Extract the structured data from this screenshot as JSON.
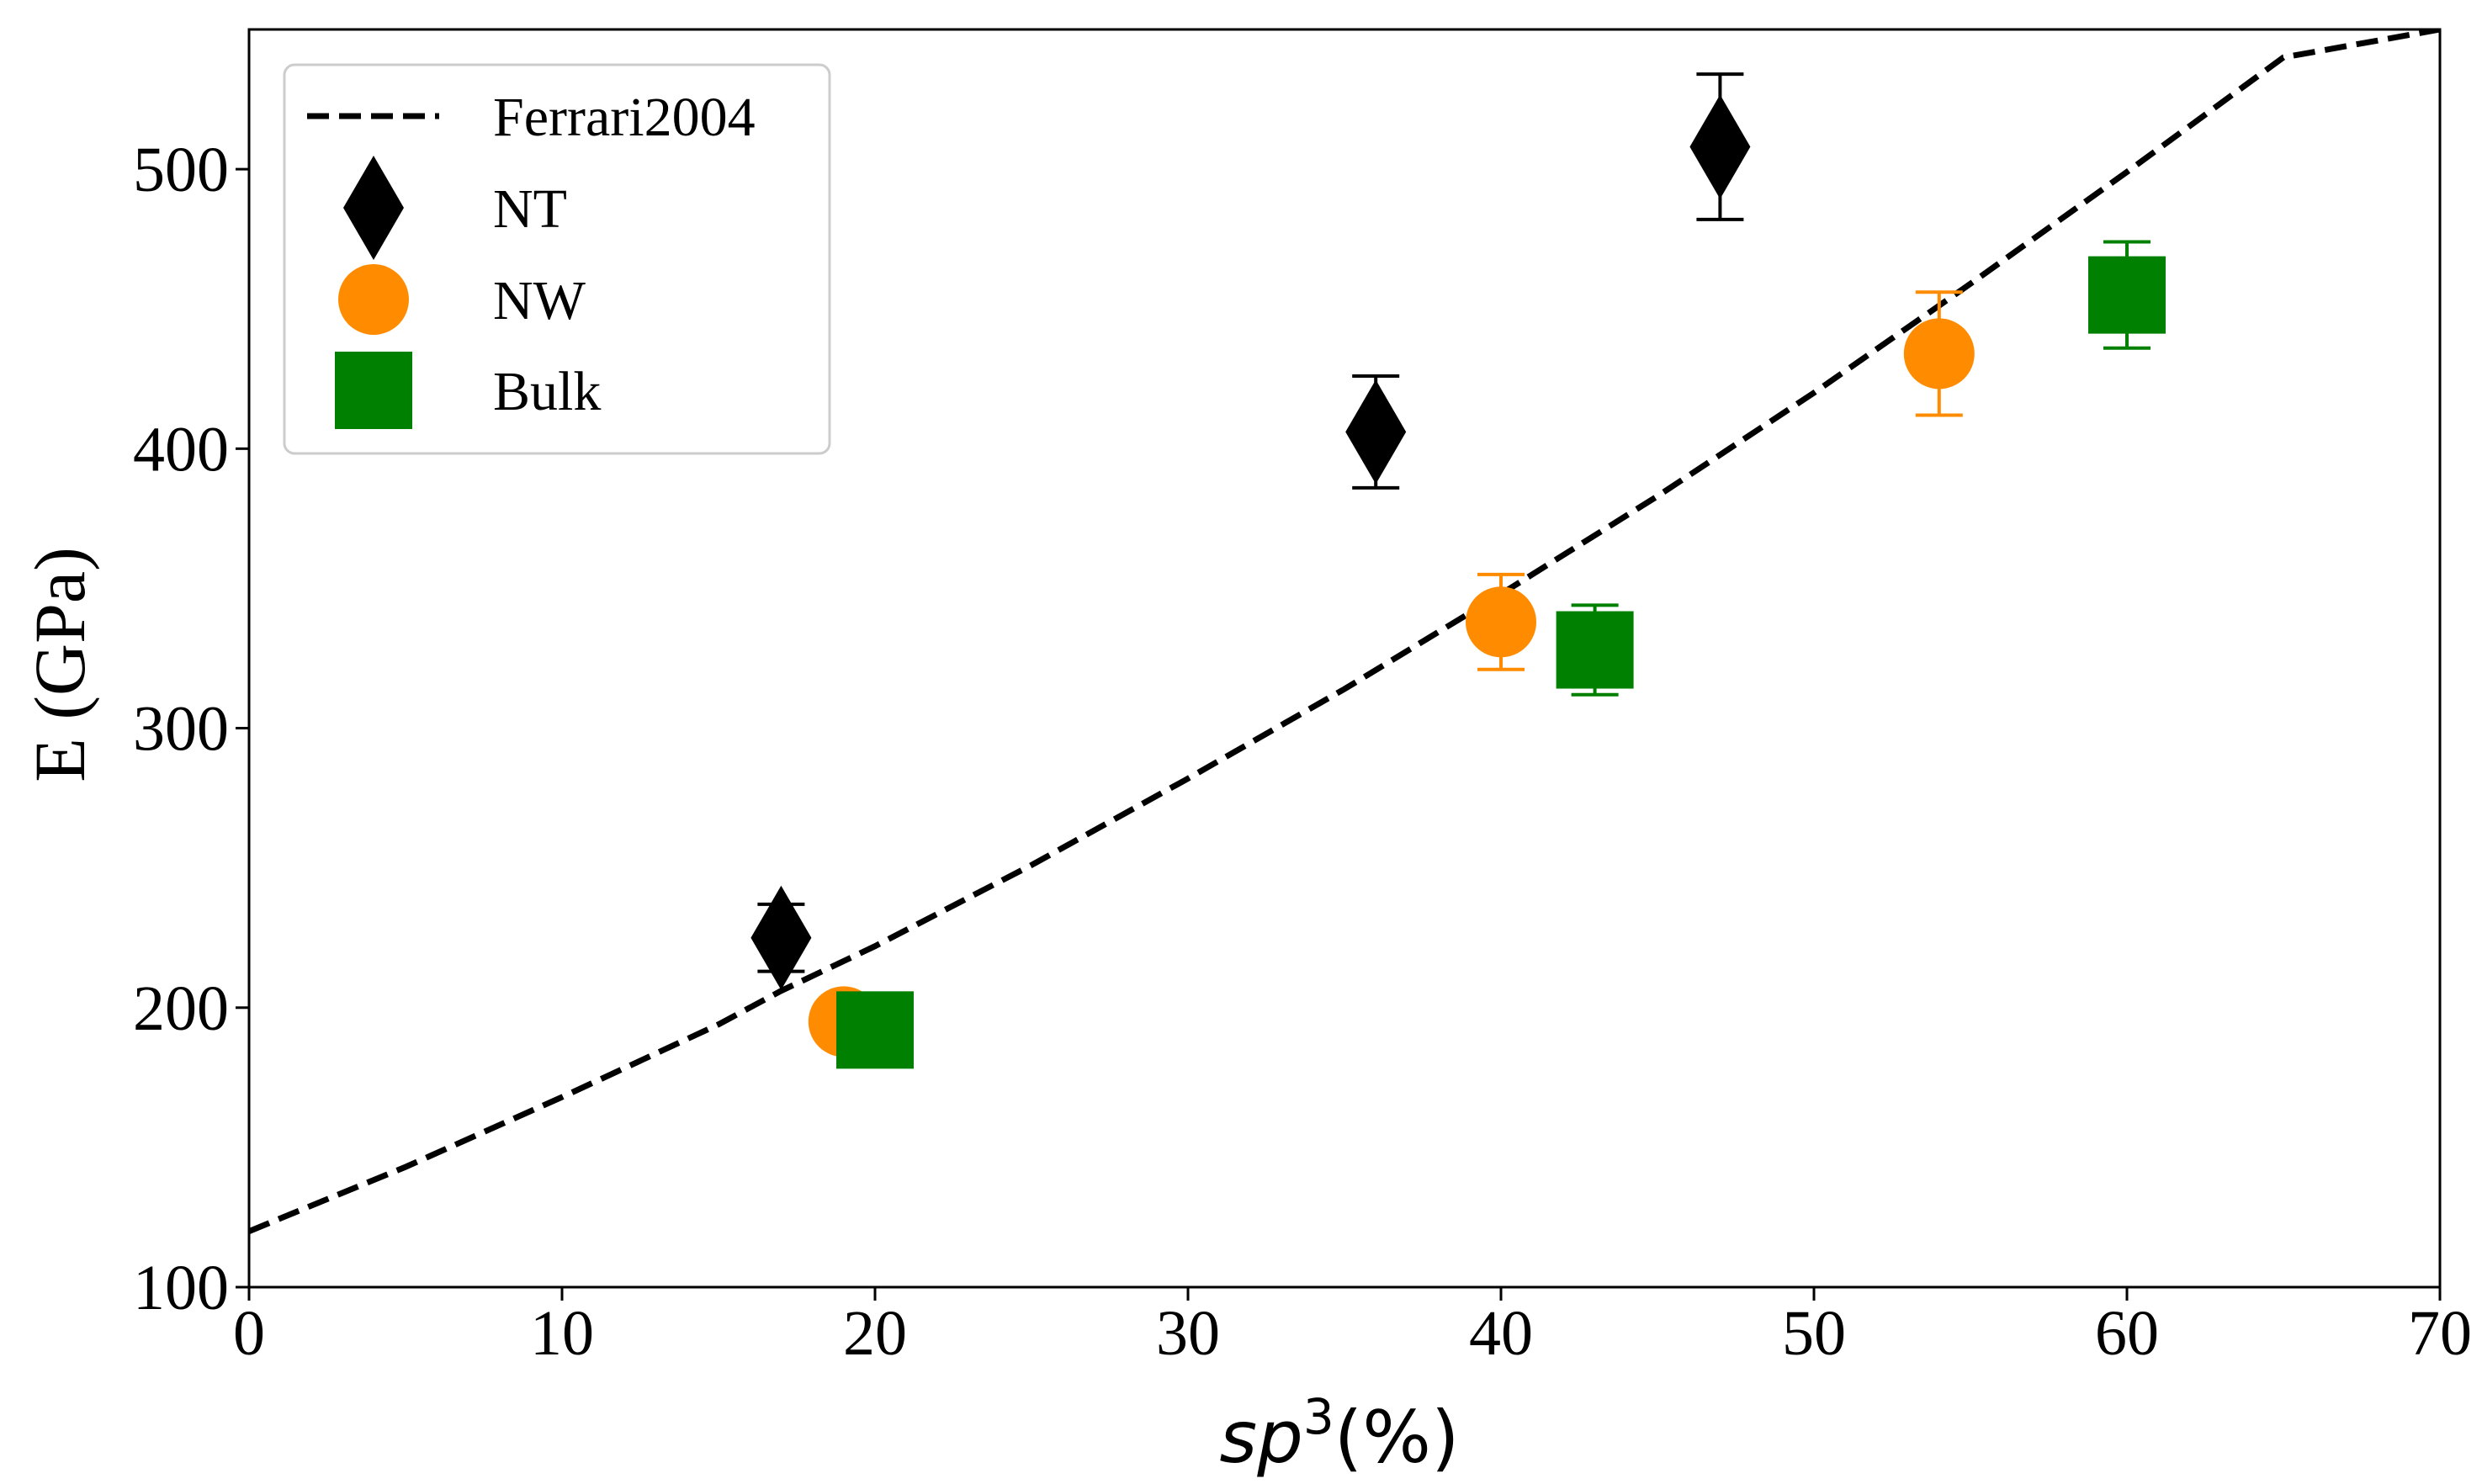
{
  "chart_data": {
    "type": "scatter",
    "title": "",
    "xlabel": {
      "base": "sp",
      "sup": "3",
      "rest": "(%)"
    },
    "ylabel": "E (GPa)",
    "xlim": [
      0,
      70
    ],
    "ylim": [
      100,
      550
    ],
    "xticks": [
      0,
      10,
      20,
      30,
      40,
      50,
      60,
      70
    ],
    "yticks": [
      100,
      200,
      300,
      400,
      500
    ],
    "grid": false,
    "legend_position": "top-left",
    "fit_line": {
      "name": "Ferrari2004",
      "style": "dashed",
      "color": "#000000",
      "x": [
        0,
        5,
        10,
        15,
        17,
        20,
        25,
        30,
        35,
        40,
        45,
        50,
        55,
        60,
        65,
        70
      ],
      "y": [
        120,
        143,
        168,
        194,
        206,
        222,
        251,
        282,
        314,
        348,
        383,
        420,
        459,
        499,
        540,
        550
      ]
    },
    "series": [
      {
        "name": "NT",
        "marker": "diamond",
        "color": "#000000",
        "points": [
          {
            "x": 17,
            "y": 225,
            "err": 12
          },
          {
            "x": 36,
            "y": 406,
            "err": 20
          },
          {
            "x": 47,
            "y": 508,
            "err": 26
          }
        ]
      },
      {
        "name": "NW",
        "marker": "circle",
        "color": "#ff8c00",
        "points": [
          {
            "x": 19,
            "y": 195,
            "err": 0
          },
          {
            "x": 40,
            "y": 338,
            "err": 17
          },
          {
            "x": 54,
            "y": 434,
            "err": 22
          }
        ]
      },
      {
        "name": "Bulk",
        "marker": "square",
        "color": "#008000",
        "points": [
          {
            "x": 20,
            "y": 192,
            "err": 0
          },
          {
            "x": 43,
            "y": 328,
            "err": 16
          },
          {
            "x": 60,
            "y": 455,
            "err": 19
          }
        ]
      }
    ],
    "legend": [
      {
        "name": "Ferrari2004",
        "marker": "dashed-line",
        "color": "#000000"
      },
      {
        "name": "NT",
        "marker": "diamond",
        "color": "#000000"
      },
      {
        "name": "NW",
        "marker": "circle",
        "color": "#ff8c00"
      },
      {
        "name": "Bulk",
        "marker": "square",
        "color": "#008000"
      }
    ]
  }
}
